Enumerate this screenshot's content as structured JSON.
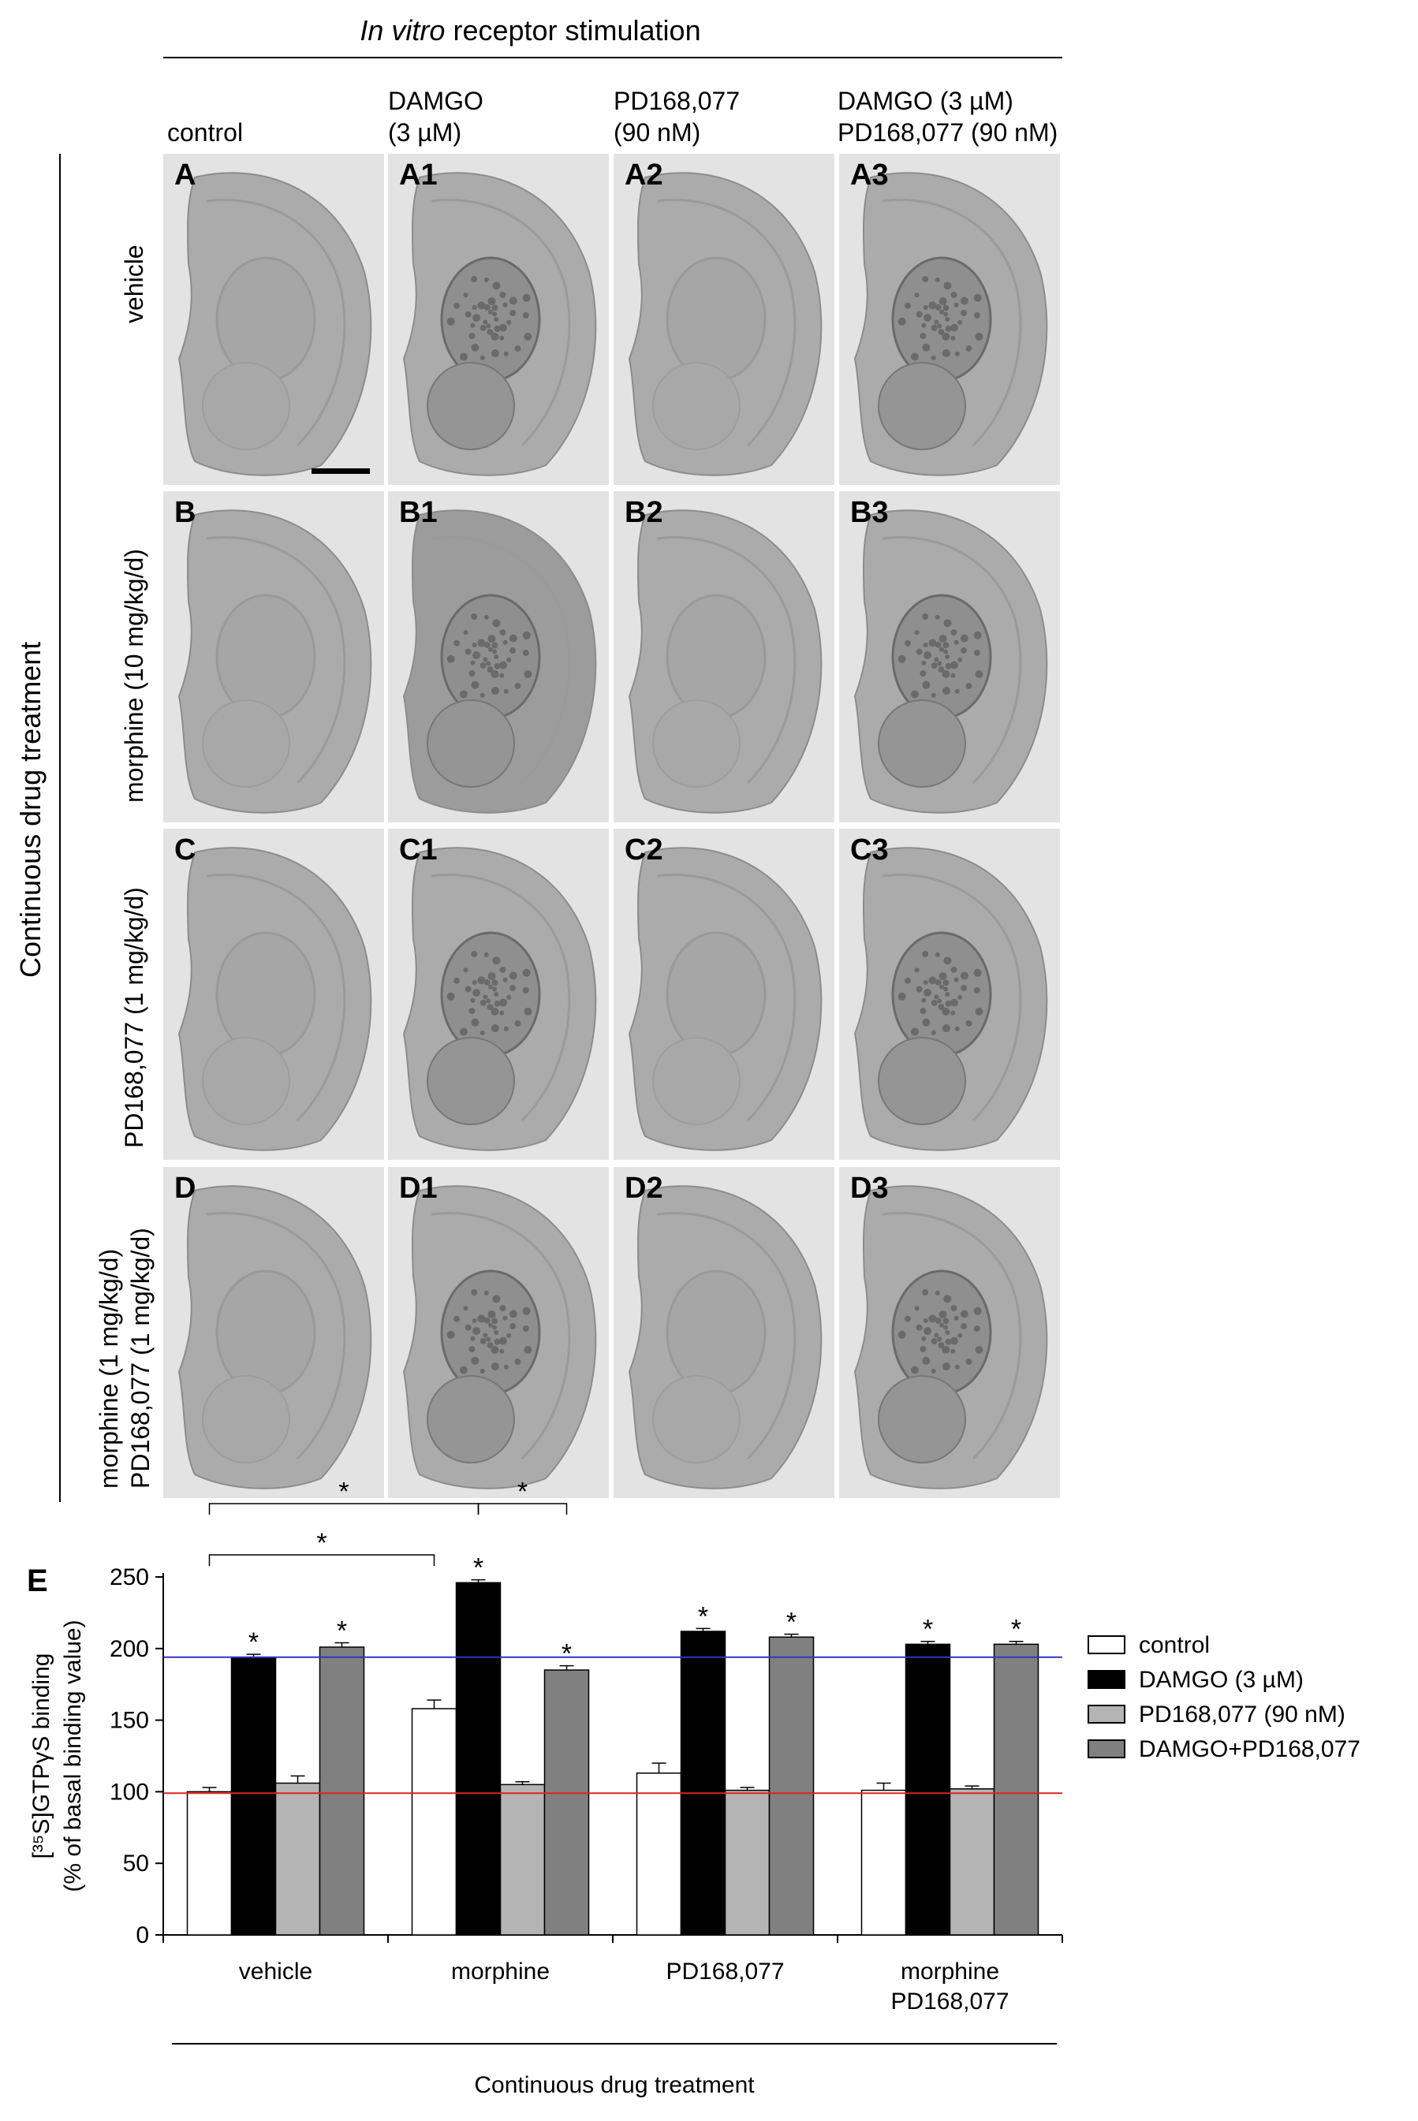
{
  "header": {
    "title_italic": "In vitro",
    "title_rest": " receptor stimulation",
    "side_label": "Continuous drug treatment"
  },
  "columns": [
    "control",
    "DAMGO\n(3 µM)",
    "PD168,077\n(90 nM)",
    "DAMGO (3 µM)\nPD168,077 (90 nM)"
  ],
  "rows": [
    "vehicle",
    "morphine (10 mg/kg/d)",
    "PD168,077 (1 mg/kg/d)",
    "morphine (1 mg/kg/d)\nPD168,077 (1 mg/kg/d)"
  ],
  "panels": [
    [
      "A",
      "A1",
      "A2",
      "A3"
    ],
    [
      "B",
      "B1",
      "B2",
      "B3"
    ],
    [
      "C",
      "C1",
      "C2",
      "C3"
    ],
    [
      "D",
      "D1",
      "D2",
      "D3"
    ]
  ],
  "chart_data": {
    "type": "bar",
    "panel_label": "E",
    "categories": [
      "vehicle",
      "morphine",
      "PD168,077",
      "morphine\nPD168,077"
    ],
    "series": [
      {
        "name": "control",
        "values": [
          100,
          158,
          113,
          101
        ],
        "errors": [
          3,
          6,
          7,
          5
        ],
        "color": "#ffffff"
      },
      {
        "name": "DAMGO (3 µM)",
        "values": [
          194,
          246,
          212,
          203
        ],
        "errors": [
          2,
          2,
          2,
          2
        ],
        "color": "#000000"
      },
      {
        "name": "PD168,077 (90 nM)",
        "values": [
          106,
          105,
          101,
          102
        ],
        "errors": [
          5,
          2,
          2,
          2
        ],
        "color": "#b4b4b4"
      },
      {
        "name": "DAMGO+PD168,077",
        "values": [
          201,
          185,
          208,
          203
        ],
        "errors": [
          3,
          3,
          2,
          2
        ],
        "color": "#808080"
      }
    ],
    "significant": [
      [
        false,
        true,
        false,
        true
      ],
      [
        false,
        true,
        false,
        true
      ],
      [
        false,
        true,
        false,
        true
      ],
      [
        false,
        true,
        false,
        true
      ]
    ],
    "brackets": [
      {
        "from": [
          0,
          0
        ],
        "to": [
          1,
          1
        ],
        "label": "*"
      },
      {
        "from": [
          1,
          1
        ],
        "to": [
          1,
          3
        ],
        "label": "*"
      },
      {
        "from": [
          0,
          0
        ],
        "to": [
          1,
          0
        ],
        "label": "*"
      }
    ],
    "reference_lines": [
      {
        "value": 194,
        "color": "#3333cc"
      },
      {
        "value": 99,
        "color": "#dd2222"
      }
    ],
    "ylabel_line1": "[³⁵S]GTPγS binding",
    "ylabel_line2": "(% of basal binding value)",
    "xlabel": "Continuous drug treatment",
    "ylim": [
      0,
      250
    ],
    "yticks": [
      0,
      50,
      100,
      150,
      200,
      250
    ],
    "legend_position": "right"
  }
}
